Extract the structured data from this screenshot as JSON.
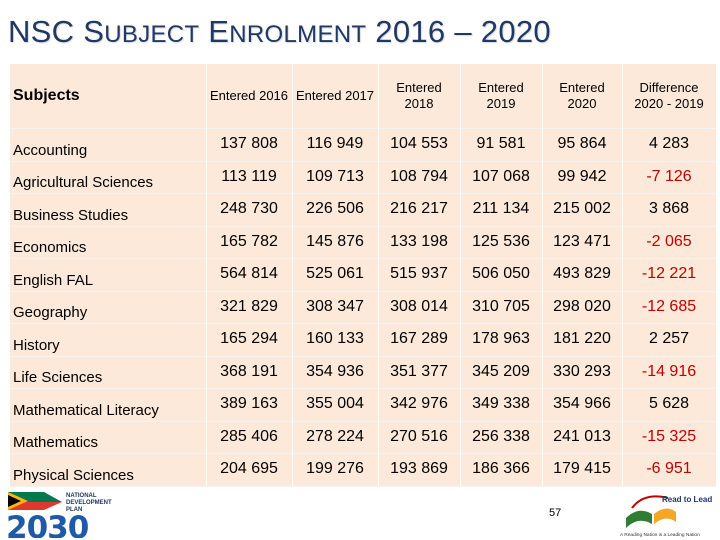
{
  "title": {
    "first": "NSC S",
    "first_sc": "UBJECT",
    "space1": " E",
    "second_sc": "NROLMENT",
    "rest": " 2016 – 2020"
  },
  "table": {
    "headers": [
      "Subjects",
      "Entered 2016",
      "Entered 2017",
      "Entered 2018",
      "Entered 2019",
      "Entered 2020",
      "Difference 2020 - 2019"
    ],
    "rows": [
      {
        "subject": "Accounting",
        "values": [
          "137 808",
          "116 949",
          "104 553",
          "91 581",
          "95 864",
          "4 283"
        ]
      },
      {
        "subject": "Agricultural Sciences",
        "values": [
          "113 119",
          "109 713",
          "108 794",
          "107 068",
          "99 942",
          "-7 126"
        ]
      },
      {
        "subject": "Business Studies",
        "values": [
          "248 730",
          "226 506",
          "216 217",
          "211 134",
          "215 002",
          "3 868"
        ]
      },
      {
        "subject": "Economics",
        "values": [
          "165 782",
          "145 876",
          "133 198",
          "125 536",
          "123 471",
          "-2 065"
        ]
      },
      {
        "subject": "English FAL",
        "values": [
          "564 814",
          "525 061",
          "515 937",
          "506 050",
          "493 829",
          "-12 221"
        ]
      },
      {
        "subject": "Geography",
        "values": [
          "321 829",
          "308 347",
          "308 014",
          "310 705",
          "298 020",
          "-12 685"
        ]
      },
      {
        "subject": "History",
        "values": [
          "165 294",
          "160 133",
          "167 289",
          "178 963",
          "181 220",
          "2 257"
        ]
      },
      {
        "subject": "Life Sciences",
        "values": [
          "368 191",
          "354 936",
          "351 377",
          "345 209",
          "330 293",
          "-14 916"
        ]
      },
      {
        "subject": "Mathematical Literacy",
        "values": [
          "389 163",
          "355 004",
          "342 976",
          "349 338",
          "354 966",
          "5 628"
        ]
      },
      {
        "subject": "Mathematics",
        "values": [
          "285 406",
          "278 224",
          "270 516",
          "256 338",
          "241 013",
          "-15 325"
        ]
      },
      {
        "subject": "Physical Sciences",
        "values": [
          "204 695",
          "199 276",
          "193 869",
          "186 366",
          "179 415",
          "-6 951"
        ]
      }
    ]
  },
  "footer": {
    "ndp_logo": {
      "line1": "NATIONAL",
      "line2": "DEVELOPMENT",
      "line3": "PLAN",
      "year": "2030"
    },
    "page_number": "57",
    "read_to_lead": {
      "title": "Read to Lead",
      "tagline": "A Reading Nation is a Leading Nation"
    }
  },
  "colors": {
    "title": "#1f3864",
    "table_bg": "#fde9d9",
    "negative": "#c00000"
  }
}
